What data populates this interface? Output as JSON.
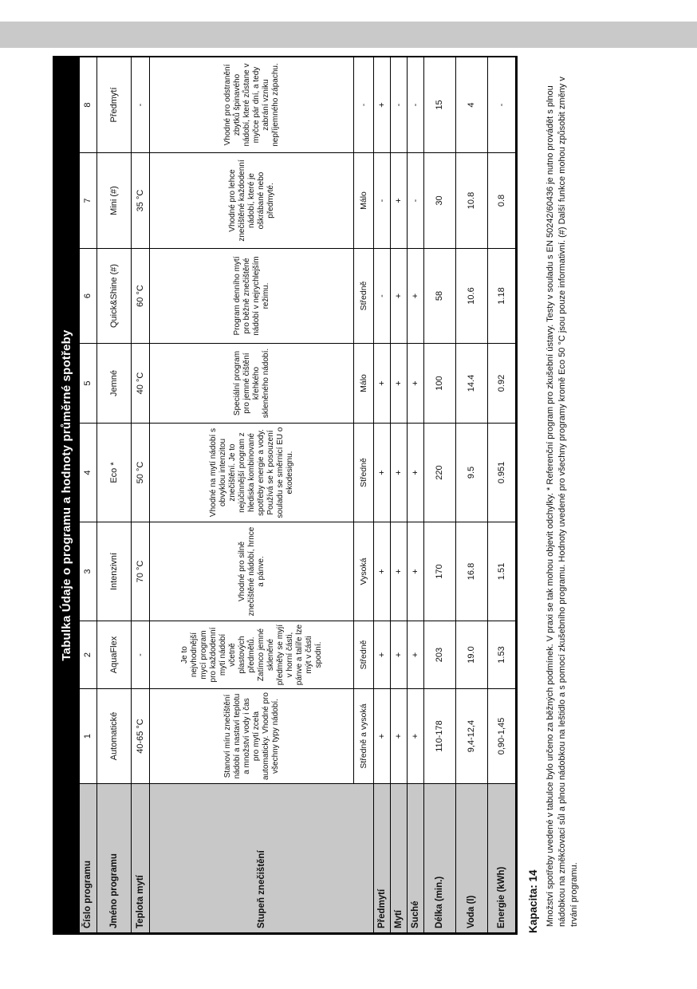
{
  "title": "Tabulka Údaje o programu a hodnoty průměrné spotřeby",
  "table": {
    "rows": [
      {
        "kind": "num",
        "header": "Číslo programu",
        "cells": [
          "1",
          "2",
          "3",
          "4",
          "5",
          "6",
          "7",
          "8"
        ]
      },
      {
        "kind": "name",
        "header": "Jméno programu",
        "cells": [
          "Automatické",
          "AquaFlex",
          "Intenzivní",
          "Eco *",
          "Jemné",
          "Quick&Shine (#)",
          "Mini (#)",
          "Předmytí"
        ]
      },
      {
        "kind": "temp",
        "header": "Teplota mytí",
        "cells": [
          "40-65 °C",
          "-",
          "70 °C",
          "50 °C",
          "40 °C",
          "60 °C",
          "35 °C",
          "-"
        ]
      },
      {
        "kind": "desc",
        "header": "Stupeň znečištění",
        "header_rowspan": 2,
        "cells": [
          "Stanoví míru znečištění nádobí a nastaví teplotu a množství vody i čas pro mytí zcela automaticky. Vhodné pro všechny typy nádobí.",
          "Je to nejvhodnější mycí program pro každodenní mytí nádobí včetně plastových předmětů. Zatímco jemné skleněné předměty se myjí v horní části, pánve a talíře lze mýt v části spodní.",
          "Vhodné pro silně znečištěné nádobí, hrnce a pánve.",
          "Vhodné na mytí nádobí s obvyklou intenzitou znečištění. Je to nejúčinnější program z hlediska kombinované spotřeby energie a vody. Používá se k posouzení souladu se směrnicí EU o ekodesignu.",
          "Speciální program pro jemné čištění křehkého skleněného nádobí.",
          "Program denního mytí pro běžně znečištěné nádobí v nejrychlejším režimu.",
          "Vhodné pro lehce znečištěné každodenní nádobí, které je oškrábané nebo předmyté.",
          "Vhodné pro odstranění zbytků špinavého nádobí, které zůstane v myčce pár dní, a tedy zabrání vzniku nepříjemného zápachu."
        ]
      },
      {
        "kind": "soil",
        "header": null,
        "cells": [
          "Středně a vysoká",
          "Středně",
          "Vysoká",
          "Středně",
          "Málo",
          "Středně",
          "Málo",
          "-"
        ]
      },
      {
        "kind": "flag",
        "header": "Předmytí",
        "cells": [
          "+",
          "+",
          "+",
          "+",
          "+",
          "-",
          "-",
          "+"
        ]
      },
      {
        "kind": "flag",
        "header": "Mytí",
        "cells": [
          "+",
          "+",
          "+",
          "+",
          "+",
          "+",
          "+",
          "-"
        ]
      },
      {
        "kind": "flag",
        "header": "Suché",
        "cells": [
          "+",
          "+",
          "+",
          "+",
          "+",
          "+",
          "-",
          "-"
        ]
      },
      {
        "kind": "dur",
        "header": "Délka (min.)",
        "cells": [
          "110-178",
          "203",
          "170",
          "220",
          "100",
          "58",
          "30",
          "15"
        ]
      },
      {
        "kind": "water",
        "header": "Voda (l)",
        "cells": [
          "9,4-12,4",
          "19.0",
          "16.8",
          "9.5",
          "14.4",
          "10.6",
          "10.8",
          "4"
        ]
      },
      {
        "kind": "energy",
        "header": "Energie (kWh)",
        "cells": [
          "0,90-1,45",
          "1.53",
          "1.51",
          "0.951",
          "0.92",
          "1.18",
          "0.8",
          "-"
        ]
      }
    ]
  },
  "capacity_label": "Kapacita: 14",
  "footnote": "Množství spotřeby uvedené v tabulce bylo určeno za běžných podmínek. V praxi se tak mohou objevit odchylky. * Referenční program pro zkušební ústavy. Testy v souladu s EN 50242/60436 je nutno provádět s plnou nádobkou na změkčovací sůl a plnou nádobkou na leštidlo a s pomocí zkušebního programu. Hodnoty uvedené pro všechny programy kromě Eco 50 °C jsou pouze informativní. (#) Další funkce mohou způsobit změny v trvání programu."
}
